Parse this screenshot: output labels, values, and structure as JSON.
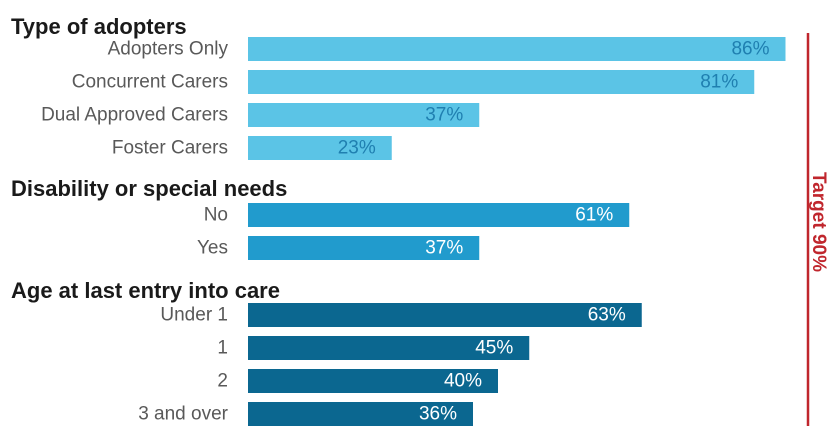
{
  "chart_data": {
    "type": "bar",
    "orientation": "horizontal",
    "value_format": "percent",
    "xlim": [
      0,
      100
    ],
    "grid": false,
    "target": {
      "value": 90,
      "label": "Target 90%",
      "color": "#c0262d"
    },
    "groups": [
      {
        "title": "Type of adopters",
        "color": "#5bc4e6",
        "label_color": "#1f7fb0",
        "categories": [
          "Adopters Only",
          "Concurrent Carers",
          "Dual Approved Carers",
          "Foster Carers"
        ],
        "values": [
          86,
          81,
          37,
          23
        ],
        "value_labels": [
          "86%",
          "81%",
          "37%",
          "23%"
        ]
      },
      {
        "title": "Disability or special needs",
        "color": "#219bcd",
        "label_color": "#ffffff",
        "categories": [
          "No",
          "Yes"
        ],
        "values": [
          61,
          37
        ],
        "value_labels": [
          "61%",
          "37%"
        ]
      },
      {
        "title": "Age at last entry into care",
        "color": "#0b6790",
        "label_color": "#ffffff",
        "categories": [
          "Under 1",
          "1",
          "2",
          "3 and over"
        ],
        "values": [
          63,
          45,
          40,
          36
        ],
        "value_labels": [
          "63%",
          "45%",
          "40%",
          "36%"
        ]
      }
    ]
  }
}
